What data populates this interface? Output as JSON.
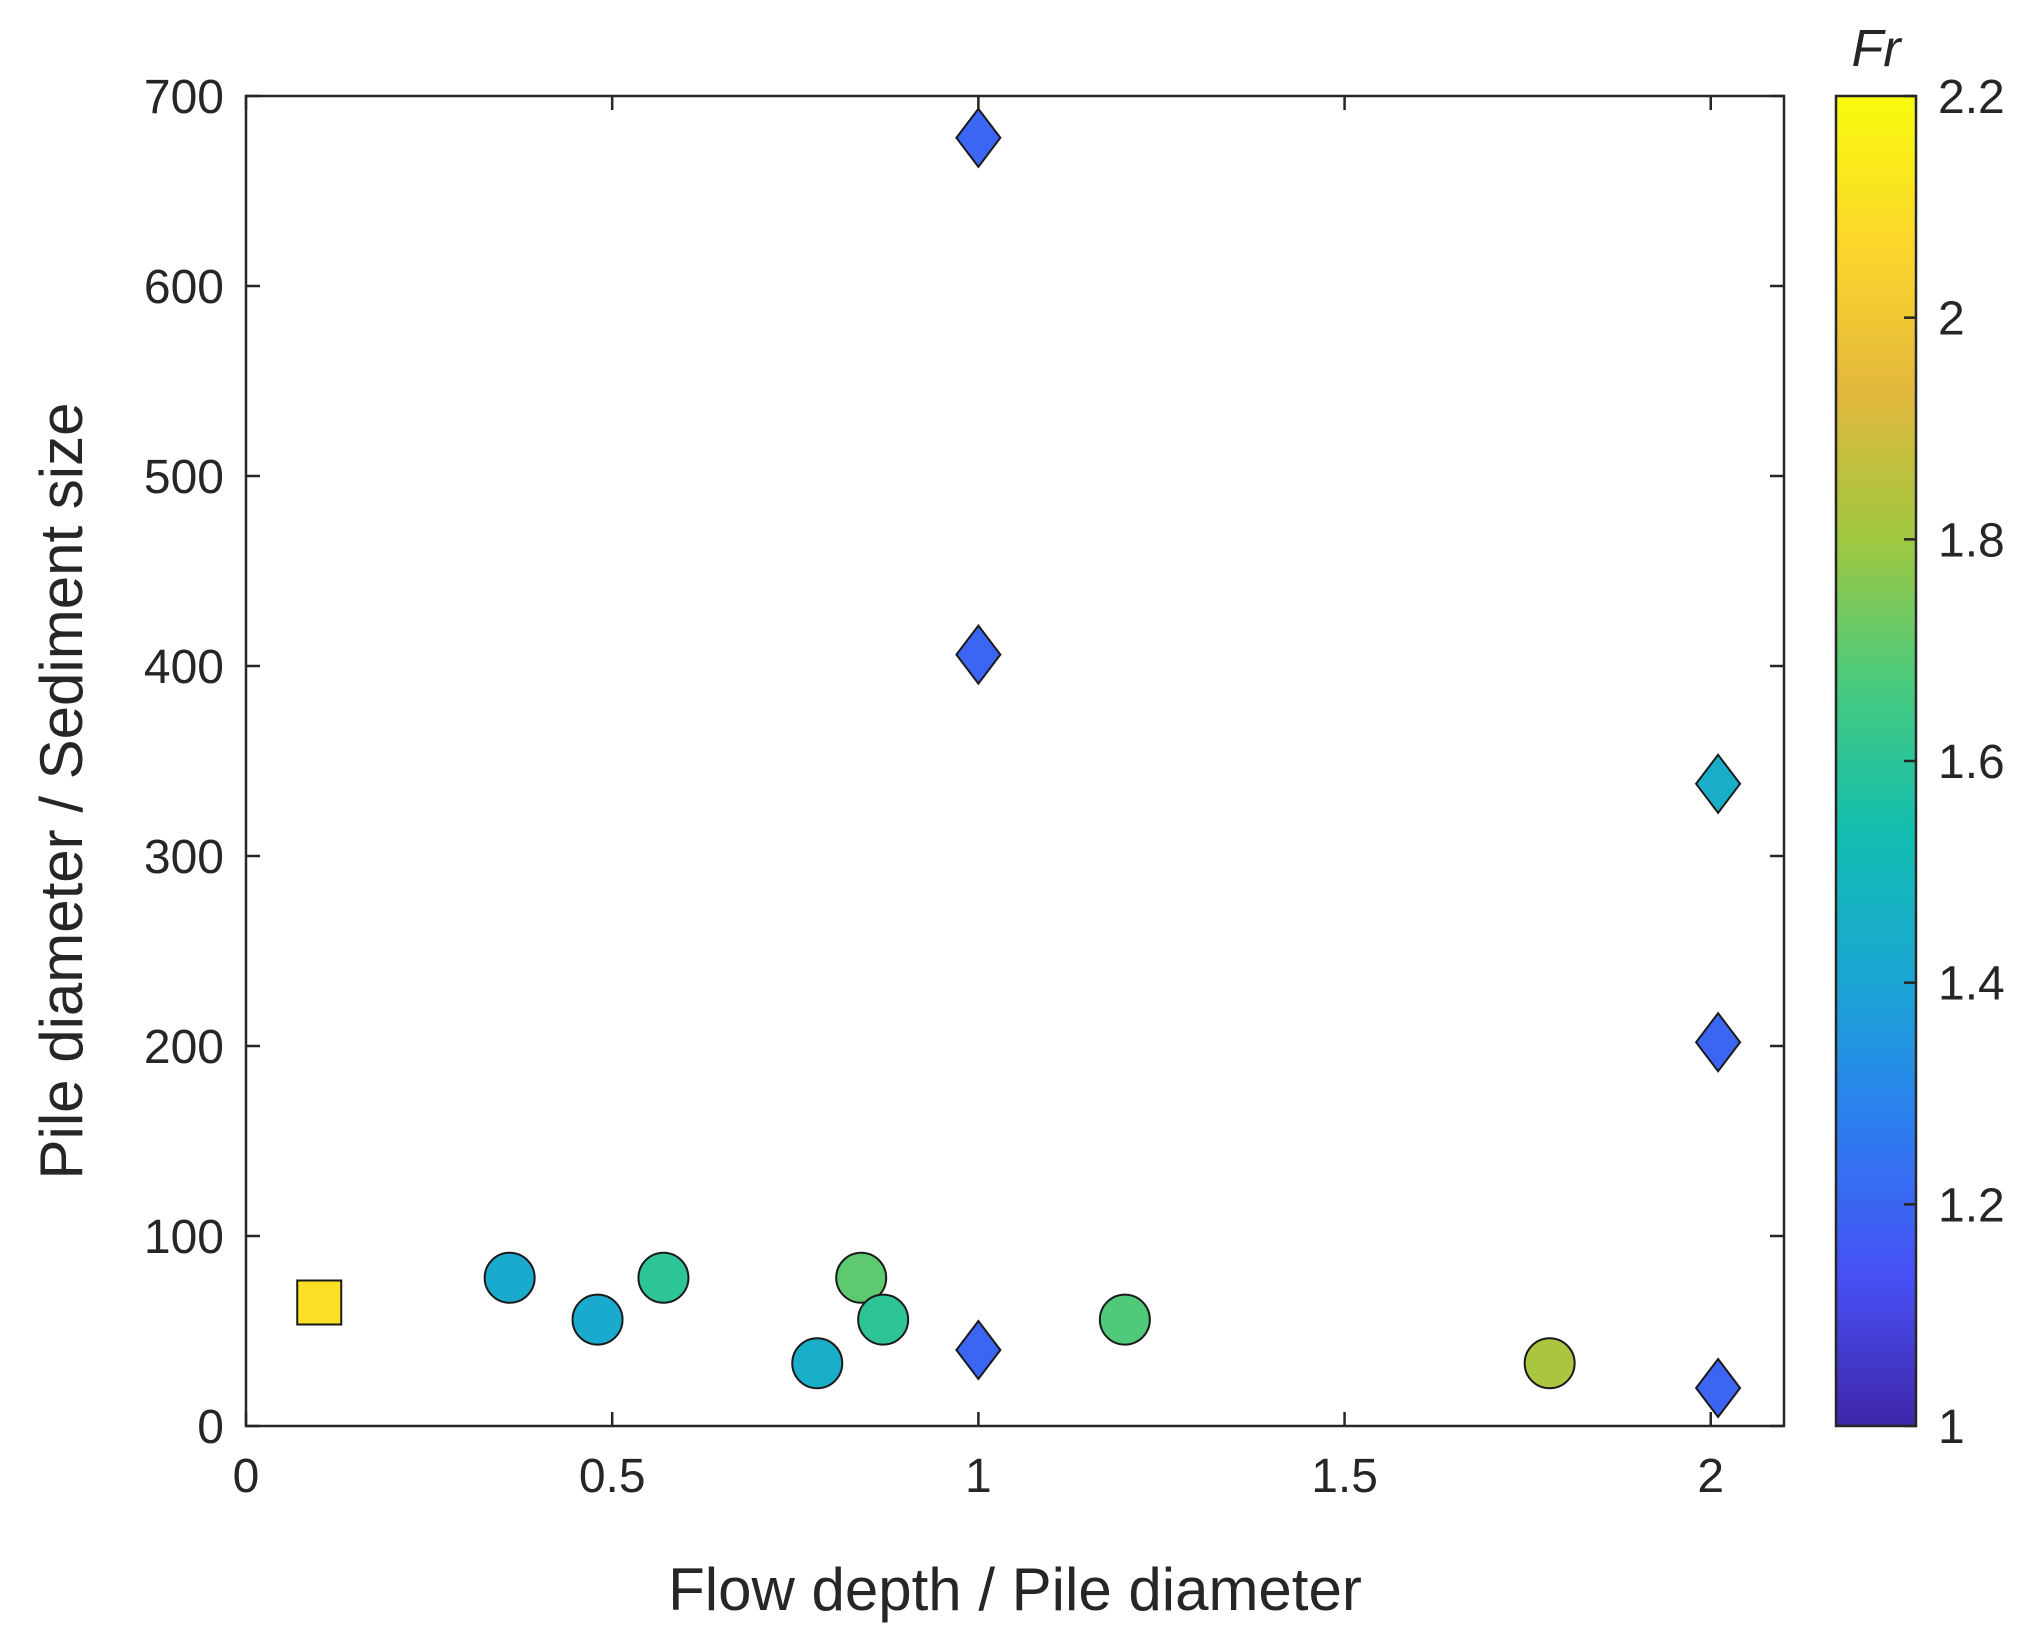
{
  "chart_data": {
    "type": "scatter",
    "xlabel": "Flow depth / Pile diameter",
    "ylabel": "Pile diameter / Sediment size",
    "xlim": [
      0,
      2.1
    ],
    "ylim": [
      0,
      700
    ],
    "xticks": [
      0,
      0.5,
      1,
      1.5,
      2
    ],
    "xtick_labels": [
      "0",
      "0.5",
      "1",
      "1.5",
      "2"
    ],
    "yticks": [
      0,
      100,
      200,
      300,
      400,
      500,
      600,
      700
    ],
    "ytick_labels": [
      "0",
      "100",
      "200",
      "300",
      "400",
      "500",
      "600",
      "700"
    ],
    "grid": false,
    "colorbar": {
      "title": "Fr",
      "range": [
        1,
        2.2
      ],
      "ticks": [
        1,
        1.2,
        1.4,
        1.6,
        1.8,
        2,
        2.2
      ],
      "tick_labels": [
        "1",
        "1.2",
        "1.4",
        "1.6",
        "1.8",
        "2",
        "2.2"
      ],
      "colormap": "parula",
      "colormap_stops": [
        "#3e26a8",
        "#4850f5",
        "#2d7bf0",
        "#1ba5d5",
        "#12bdb0",
        "#47ca7e",
        "#a0c841",
        "#e2b83c",
        "#fbd72c",
        "#f9fb0e"
      ]
    },
    "series": [
      {
        "name": "square",
        "marker": "square",
        "points": [
          {
            "x": 0.1,
            "y": 65,
            "fr": 2.1
          }
        ]
      },
      {
        "name": "circle",
        "marker": "circle",
        "points": [
          {
            "x": 0.36,
            "y": 78,
            "fr": 1.43
          },
          {
            "x": 0.48,
            "y": 56,
            "fr": 1.43
          },
          {
            "x": 0.57,
            "y": 78,
            "fr": 1.6
          },
          {
            "x": 0.78,
            "y": 33,
            "fr": 1.45
          },
          {
            "x": 0.84,
            "y": 78,
            "fr": 1.7
          },
          {
            "x": 0.87,
            "y": 56,
            "fr": 1.6
          },
          {
            "x": 1.2,
            "y": 56,
            "fr": 1.68
          },
          {
            "x": 1.78,
            "y": 33,
            "fr": 1.82
          }
        ]
      },
      {
        "name": "diamond",
        "marker": "diamond",
        "points": [
          {
            "x": 1.0,
            "y": 678,
            "fr": 1.2
          },
          {
            "x": 1.0,
            "y": 406,
            "fr": 1.2
          },
          {
            "x": 1.0,
            "y": 40,
            "fr": 1.2
          },
          {
            "x": 2.01,
            "y": 338,
            "fr": 1.45
          },
          {
            "x": 2.01,
            "y": 202,
            "fr": 1.2
          },
          {
            "x": 2.01,
            "y": 20,
            "fr": 1.2
          }
        ]
      }
    ]
  }
}
